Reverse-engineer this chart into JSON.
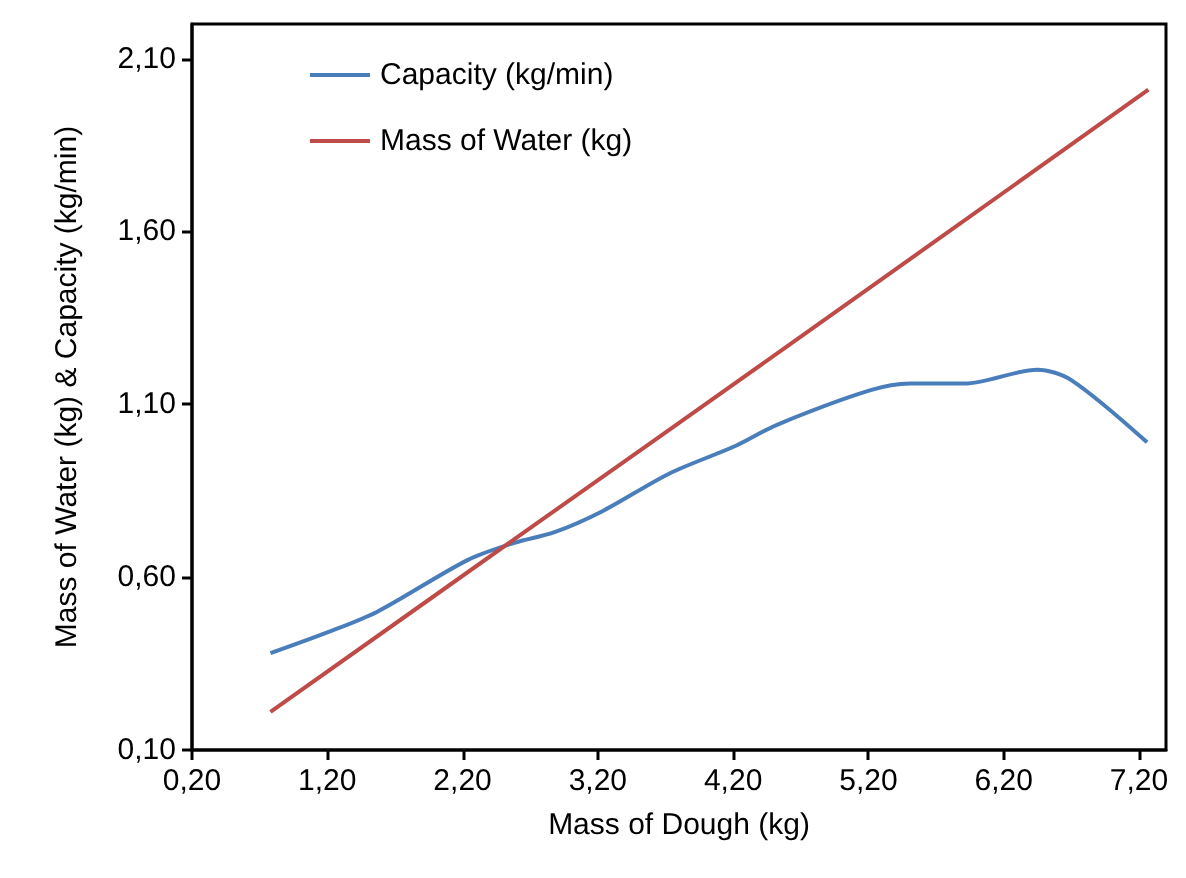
{
  "chart_data": {
    "type": "line",
    "xlabel": "Mass of Dough (kg)",
    "ylabel": "Mass of Water (kg) & Capacity (kg/min)",
    "xlim": [
      0.2,
      7.4
    ],
    "ylim": [
      0.1,
      2.2
    ],
    "xticks": [
      {
        "value": 0.2,
        "label": "0,20"
      },
      {
        "value": 1.2,
        "label": "1,20"
      },
      {
        "value": 2.2,
        "label": "2,20"
      },
      {
        "value": 3.2,
        "label": "3,20"
      },
      {
        "value": 4.2,
        "label": "4,20"
      },
      {
        "value": 5.2,
        "label": "5,20"
      },
      {
        "value": 6.2,
        "label": "6,20"
      },
      {
        "value": 7.2,
        "label": "7,20"
      }
    ],
    "yticks": [
      {
        "value": 0.1,
        "label": "0,10"
      },
      {
        "value": 0.6,
        "label": "0,60"
      },
      {
        "value": 1.1,
        "label": "1,10"
      },
      {
        "value": 1.6,
        "label": "1,60"
      },
      {
        "value": 2.1,
        "label": "2,10"
      }
    ],
    "grid": false,
    "legend": "top left",
    "marker": "none",
    "line_style": "solid",
    "series": [
      {
        "name": "Capacity (kg/min)",
        "color": "#4a7ebb",
        "x": [
          0.78,
          1.2,
          1.57,
          2.24,
          2.59,
          2.88,
          3.23,
          3.73,
          4.22,
          4.52,
          5.21,
          5.51,
          5.91,
          6.45,
          6.7,
          7.26
        ],
        "values": [
          0.38,
          0.44,
          0.5,
          0.65,
          0.7,
          0.73,
          0.79,
          0.9,
          0.98,
          1.04,
          1.14,
          1.16,
          1.16,
          1.2,
          1.17,
          0.99
        ]
      },
      {
        "name": "Mass of Water (kg)",
        "color": "#be4b48",
        "x": [
          0.78,
          2.62,
          4.5,
          7.27
        ],
        "values": [
          0.21,
          0.72,
          1.24,
          2.01
        ]
      }
    ]
  }
}
